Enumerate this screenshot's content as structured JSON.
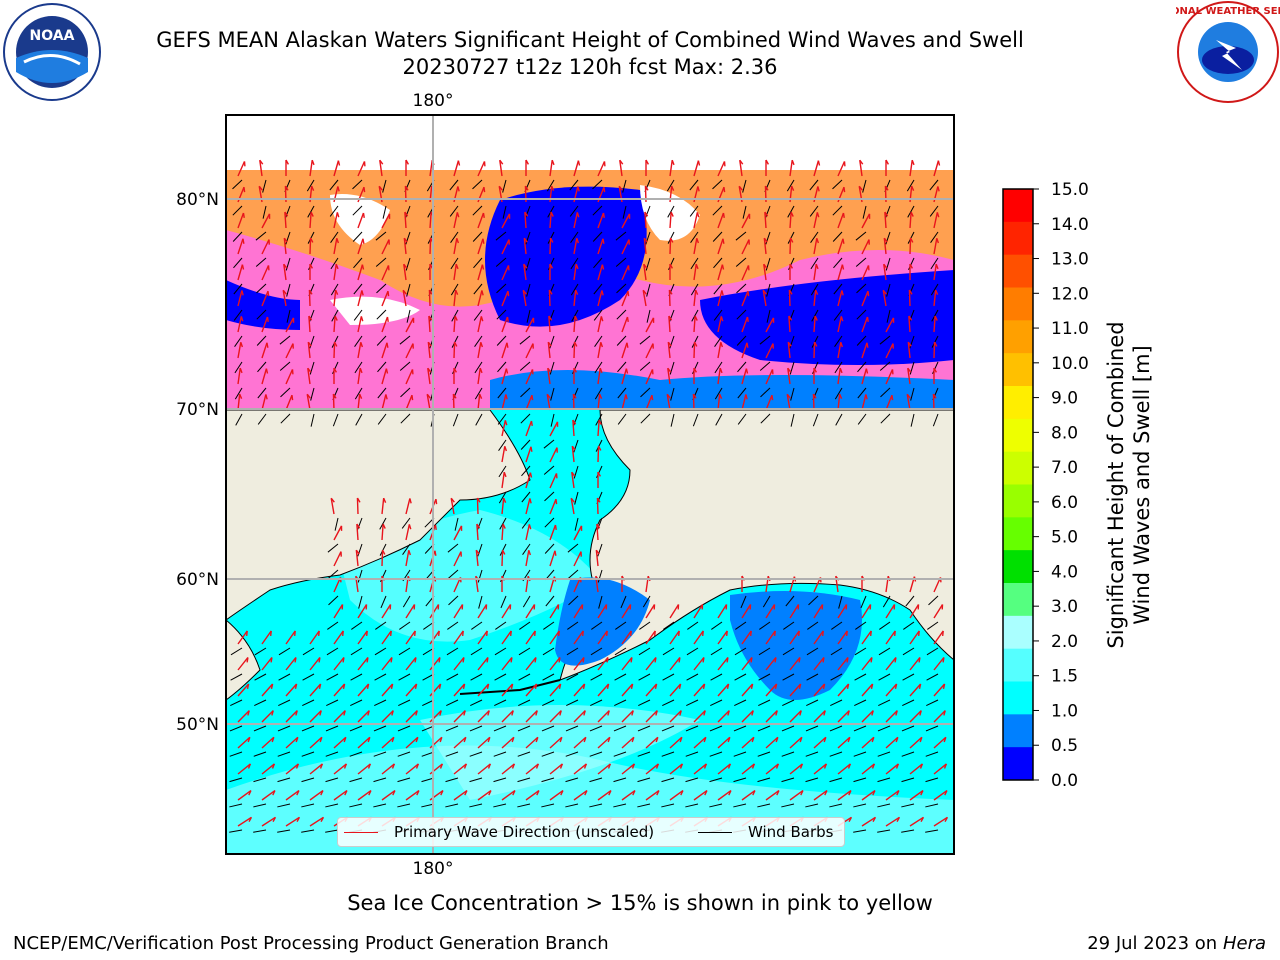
{
  "header": {
    "title_line1": "GEFS MEAN Alaskan Waters Significant Height of Combined Wind Waves and Swell",
    "title_line2": "20230727 t12z 120h fcst   Max: 2.36"
  },
  "logos": {
    "left": {
      "icon": "noaa-logo-icon",
      "text": "NOAA"
    },
    "right": {
      "icon": "nws-logo-icon",
      "text": "NATIONAL WEATHER SERVICE"
    }
  },
  "map": {
    "lon_labels": {
      "top": "180°",
      "bottom": "180°"
    },
    "lat_labels": [
      "80°N",
      "70°N",
      "60°N",
      "50°N"
    ],
    "land_color": "#efeddf",
    "gridline_color": "#b0b0b0",
    "wave_arrow_color": "#e8141c",
    "wind_barb_color": "#000000"
  },
  "legend": {
    "wave_label": "Primary Wave Direction (unscaled)",
    "barb_label": "Wind Barbs"
  },
  "colorbar": {
    "label_line1": "Significant Height of Combined",
    "label_line2": "Wind Waves and Swell [m]",
    "ticks": [
      "15.0",
      "14.0",
      "13.0",
      "12.0",
      "11.0",
      "10.0",
      "9.0",
      "8.0",
      "7.0",
      "6.0",
      "5.0",
      "4.0",
      "3.0",
      "2.0",
      "1.5",
      "1.0",
      "0.5",
      "0.0"
    ],
    "colors_top_to_bottom": [
      "#ff0000",
      "#ff2400",
      "#ff5000",
      "#ff7d00",
      "#ffa000",
      "#ffc000",
      "#ffee00",
      "#eeff00",
      "#ccff00",
      "#99ff00",
      "#66ff00",
      "#00e000",
      "#55ff80",
      "#aaffff",
      "#55ffff",
      "#00ffff",
      "#0080ff",
      "#0000ff"
    ]
  },
  "notes": {
    "sea_ice": "Sea Ice Concentration > 15% is shown in pink to yellow"
  },
  "footer": {
    "left": "NCEP/EMC/Verification Post Processing Product Generation Branch",
    "right_date": "29 Jul 2023 on",
    "right_host": "Hera"
  }
}
